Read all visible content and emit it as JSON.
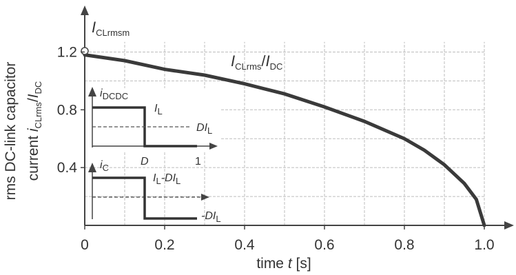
{
  "chart_data": {
    "type": "line",
    "title": "",
    "xlabel": {
      "prefix": "time ",
      "var": "t",
      "unit": " [s]"
    },
    "ylabel": {
      "line1": "rms DC-link capacitor",
      "line2_prefix": "current ",
      "line2_var": "i",
      "line2_sub": "CLrms",
      "line2_mid": "/",
      "line2_var2": "I",
      "line2_sub2": "DC"
    },
    "x_ticks": [
      "0",
      "0.2",
      "0.4",
      "0.6",
      "0.8",
      "1.0"
    ],
    "y_ticks": [
      "0.4",
      "0.8",
      "1.2"
    ],
    "xlim": [
      0,
      1.0
    ],
    "ylim": [
      0,
      1.35
    ],
    "grid": true,
    "curve_label": {
      "var1": "I",
      "sub1": "CLrms",
      "slash": "/",
      "var2": "I",
      "sub2": "DC"
    },
    "max_label": {
      "var": "I",
      "sub": "CLrmsm"
    },
    "series": [
      {
        "name": "",
        "x": [
          0,
          0.1,
          0.2,
          0.3,
          0.4,
          0.5,
          0.6,
          0.7,
          0.8,
          0.85,
          0.9,
          0.95,
          0.98,
          1.0
        ],
        "y": [
          1.18,
          1.14,
          1.08,
          1.04,
          0.98,
          0.91,
          0.82,
          0.72,
          0.6,
          0.52,
          0.42,
          0.29,
          0.18,
          0.0
        ]
      }
    ],
    "inset_top": {
      "var": "i",
      "sub": "DCDC",
      "level_label_var": "I",
      "level_label_sub": "L",
      "dashed_label_pre": "D",
      "dashed_label_var": "I",
      "dashed_label_sub": "L",
      "tick_d": "D",
      "tick_1": "1"
    },
    "inset_bottom": {
      "var": "i",
      "sub": "C",
      "high_label_var1": "I",
      "high_label_sub1": "L",
      "high_label_mid": "-D",
      "high_label_var2": "I",
      "high_label_sub2": "L",
      "low_label_pre": "-D",
      "low_label_var": "I",
      "low_label_sub": "L"
    }
  },
  "colors": {
    "curve": "#3a3a3a",
    "axis": "#444444",
    "grid": "#bdbdbd"
  }
}
